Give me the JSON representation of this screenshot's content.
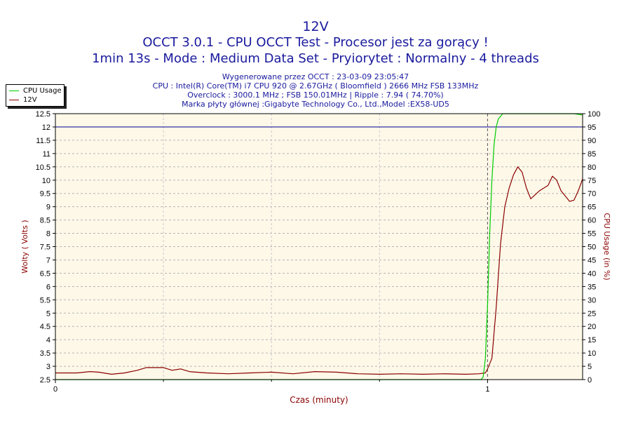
{
  "header": {
    "title_line1": "12V",
    "title_line2": "OCCT 3.0.1 - CPU OCCT Test - Procesor jest za gorący !",
    "title_line3": "1min 13s - Mode : Medium Data Set - Pryiorytet : Normalny - 4 threads",
    "info_line1": "Wygenerowane przez OCCT : 23-03-09 23:05:47",
    "info_line2": "CPU : Intel(R) Core(TM) i7 CPU 920 @ 2.67GHz ( Bloomfield ) 2666 MHz FSB 133MHz",
    "info_line3": "Overclock : 3000.1 MHz ; FSB 150.01MHz | Ripple : 7.94 ( 74.70%)",
    "info_line4": "Marka płyty głównej :Gigabyte Technology Co., Ltd.,Model :EX58-UD5"
  },
  "legend": {
    "cpu_usage": "CPU Usage",
    "v12": "12V"
  },
  "colors": {
    "cpu_usage": "#00cc00",
    "v12": "#8b0000",
    "plot_bg": "#fdf8e8",
    "limit_line": "#1a1a9e",
    "title": "#1a1a9e",
    "axis_label": "#8b0000"
  },
  "chart_data": {
    "type": "line",
    "xlabel": "Czas (minuty)",
    "ylabel_left": "Wolty ( Volts )",
    "ylabel_right": "CPU Usage (in %)",
    "xlim": [
      0,
      1.22
    ],
    "ylim_left": [
      2.5,
      12.5
    ],
    "ylim_right": [
      0,
      100
    ],
    "x_ticks": [
      0,
      1
    ],
    "x_minor_ticks": [
      0.25,
      0.5,
      0.75
    ],
    "y_ticks_left": [
      2.5,
      3,
      3.5,
      4,
      4.5,
      5,
      5.5,
      6,
      6.5,
      7,
      7.5,
      8,
      8.5,
      9,
      9.5,
      10,
      10.5,
      11,
      11.5,
      12,
      12.5
    ],
    "y_ticks_right": [
      0,
      5,
      10,
      15,
      20,
      25,
      30,
      35,
      40,
      45,
      50,
      55,
      60,
      65,
      70,
      75,
      80,
      85,
      90,
      95,
      100
    ],
    "reference_line_volts": 12,
    "marker_line_x": 1,
    "grid": true,
    "legend_position": "top-left",
    "series": [
      {
        "name": "12V",
        "axis": "left",
        "x": [
          0,
          0.05,
          0.08,
          0.1,
          0.13,
          0.16,
          0.19,
          0.21,
          0.25,
          0.27,
          0.29,
          0.31,
          0.35,
          0.4,
          0.45,
          0.5,
          0.55,
          0.6,
          0.65,
          0.7,
          0.75,
          0.8,
          0.85,
          0.9,
          0.95,
          0.98,
          0.995,
          1.0,
          1.01,
          1.02,
          1.03,
          1.04,
          1.05,
          1.06,
          1.07,
          1.08,
          1.09,
          1.1,
          1.12,
          1.14,
          1.15,
          1.16,
          1.17,
          1.19,
          1.2,
          1.21,
          1.22
        ],
        "y": [
          2.75,
          2.75,
          2.8,
          2.78,
          2.7,
          2.75,
          2.85,
          2.95,
          2.95,
          2.85,
          2.9,
          2.8,
          2.75,
          2.72,
          2.75,
          2.78,
          2.72,
          2.8,
          2.78,
          2.72,
          2.7,
          2.72,
          2.7,
          2.72,
          2.7,
          2.72,
          2.75,
          2.9,
          3.3,
          5.2,
          7.6,
          9.0,
          9.7,
          10.2,
          10.5,
          10.3,
          9.7,
          9.3,
          9.6,
          9.8,
          10.15,
          10.0,
          9.6,
          9.2,
          9.25,
          9.6,
          10.05
        ]
      },
      {
        "name": "CPU Usage",
        "axis": "right",
        "x": [
          0,
          0.985,
          0.99,
          0.995,
          1.0,
          1.005,
          1.01,
          1.015,
          1.02,
          1.025,
          1.035,
          1.05,
          1.1,
          1.15,
          1.2,
          1.22
        ],
        "y": [
          0,
          0,
          1,
          8,
          28,
          55,
          75,
          88,
          95,
          98,
          100,
          100,
          100,
          100,
          100,
          99.5
        ]
      }
    ]
  }
}
